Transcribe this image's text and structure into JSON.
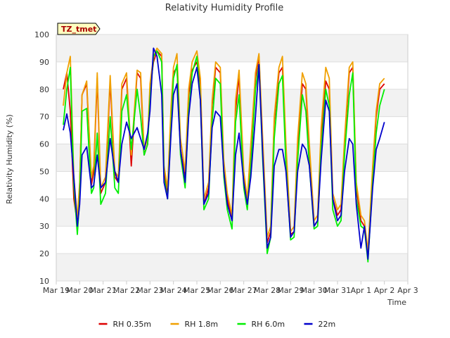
{
  "chart_data": {
    "type": "line",
    "title": "Relativity Humidity Profile",
    "xlabel": "Time",
    "ylabel": "Relativity Humidity (%)",
    "ylim": [
      10,
      100
    ],
    "xlim": [
      0,
      15
    ],
    "yticks": [
      10,
      20,
      30,
      40,
      50,
      60,
      70,
      80,
      90,
      100
    ],
    "xticks": [
      0,
      1,
      2,
      3,
      4,
      5,
      6,
      7,
      8,
      9,
      10,
      11,
      12,
      13,
      14,
      15
    ],
    "xtick_labels": [
      "Mar 19",
      "Mar 20",
      "Mar 21",
      "Mar 22",
      "Mar 23",
      "Mar 24",
      "Mar 25",
      "Mar 26",
      "Mar 27",
      "Mar 28",
      "Mar 29",
      "Mar 30",
      "Mar 31",
      "Apr 1",
      "Apr 2",
      "Apr 3"
    ],
    "x_unit": "days since Mar 19",
    "annotation": "TZ_tmet",
    "legend_position": "bottom",
    "series": [
      {
        "name": "RH 0.35m",
        "color": "#dd0000",
        "x": [
          0.3,
          0.45,
          0.6,
          0.75,
          0.9,
          1.0,
          1.1,
          1.3,
          1.5,
          1.6,
          1.75,
          1.9,
          2.1,
          2.3,
          2.5,
          2.65,
          2.8,
          3.0,
          3.2,
          3.45,
          3.6,
          3.75,
          3.9,
          4.0,
          4.15,
          4.3,
          4.5,
          4.6,
          4.75,
          4.9,
          5.0,
          5.15,
          5.3,
          5.5,
          5.65,
          5.8,
          6.0,
          6.15,
          6.3,
          6.5,
          6.65,
          6.8,
          7.0,
          7.15,
          7.3,
          7.5,
          7.65,
          7.8,
          8.0,
          8.15,
          8.3,
          8.5,
          8.65,
          8.8,
          9.0,
          9.15,
          9.3,
          9.5,
          9.65,
          9.8,
          10.0,
          10.15,
          10.3,
          10.5,
          10.65,
          10.8,
          11.0,
          11.15,
          11.3,
          11.5,
          11.65,
          11.8,
          12.0,
          12.15,
          12.3,
          12.5,
          12.65,
          12.8,
          13.0,
          13.15,
          13.3,
          13.5,
          13.65,
          13.8,
          14.0
        ],
        "values": [
          80,
          86,
          72,
          40,
          31,
          45,
          78,
          82,
          45,
          50,
          84,
          42,
          46,
          83,
          48,
          46,
          80,
          84,
          52,
          86,
          84,
          56,
          60,
          80,
          90,
          94,
          92,
          50,
          42,
          72,
          86,
          88,
          58,
          48,
          78,
          87,
          90,
          82,
          38,
          44,
          74,
          88,
          86,
          52,
          40,
          32,
          72,
          85,
          48,
          38,
          56,
          84,
          92,
          60,
          24,
          28,
          68,
          86,
          88,
          58,
          27,
          28,
          58,
          82,
          80,
          56,
          30,
          32,
          62,
          83,
          80,
          40,
          34,
          36,
          60,
          86,
          88,
          44,
          32,
          30,
          20,
          50,
          70,
          80,
          82
        ]
      },
      {
        "name": "RH 1.8m",
        "color": "#f0a000",
        "x": [
          0.3,
          0.45,
          0.6,
          0.75,
          0.9,
          1.0,
          1.1,
          1.3,
          1.5,
          1.6,
          1.75,
          1.9,
          2.1,
          2.3,
          2.5,
          2.65,
          2.8,
          3.0,
          3.2,
          3.45,
          3.6,
          3.75,
          3.9,
          4.0,
          4.15,
          4.3,
          4.5,
          4.6,
          4.75,
          4.9,
          5.0,
          5.15,
          5.3,
          5.5,
          5.65,
          5.8,
          6.0,
          6.15,
          6.3,
          6.5,
          6.65,
          6.8,
          7.0,
          7.15,
          7.3,
          7.5,
          7.65,
          7.8,
          8.0,
          8.15,
          8.3,
          8.5,
          8.65,
          8.8,
          9.0,
          9.15,
          9.3,
          9.5,
          9.65,
          9.8,
          10.0,
          10.15,
          10.3,
          10.5,
          10.65,
          10.8,
          11.0,
          11.15,
          11.3,
          11.5,
          11.65,
          11.8,
          12.0,
          12.15,
          12.3,
          12.5,
          12.65,
          12.8,
          13.0,
          13.15,
          13.3,
          13.5,
          13.65,
          13.8,
          14.0
        ],
        "values": [
          74,
          86,
          92,
          48,
          33,
          46,
          78,
          83,
          48,
          52,
          86,
          44,
          48,
          85,
          50,
          48,
          82,
          86,
          56,
          87,
          86,
          58,
          62,
          82,
          92,
          95,
          93,
          52,
          44,
          74,
          88,
          93,
          62,
          50,
          80,
          90,
          94,
          84,
          40,
          46,
          76,
          90,
          88,
          54,
          42,
          34,
          76,
          87,
          50,
          40,
          60,
          86,
          93,
          64,
          26,
          30,
          70,
          88,
          92,
          60,
          28,
          30,
          62,
          86,
          82,
          60,
          32,
          34,
          66,
          88,
          84,
          42,
          36,
          38,
          62,
          88,
          90,
          46,
          34,
          32,
          21,
          52,
          72,
          82,
          84
        ]
      },
      {
        "name": "RH 6.0m",
        "color": "#00ee00",
        "x": [
          0.3,
          0.45,
          0.6,
          0.75,
          0.9,
          1.0,
          1.1,
          1.3,
          1.5,
          1.6,
          1.75,
          1.9,
          2.1,
          2.3,
          2.5,
          2.65,
          2.8,
          3.0,
          3.2,
          3.45,
          3.6,
          3.75,
          3.9,
          4.0,
          4.15,
          4.3,
          4.5,
          4.6,
          4.75,
          4.9,
          5.0,
          5.15,
          5.3,
          5.5,
          5.65,
          5.8,
          6.0,
          6.15,
          6.3,
          6.5,
          6.65,
          6.8,
          7.0,
          7.15,
          7.3,
          7.5,
          7.65,
          7.8,
          8.0,
          8.15,
          8.3,
          8.5,
          8.65,
          8.8,
          9.0,
          9.15,
          9.3,
          9.5,
          9.65,
          9.8,
          10.0,
          10.15,
          10.3,
          10.5,
          10.65,
          10.8,
          11.0,
          11.15,
          11.3,
          11.5,
          11.65,
          11.8,
          12.0,
          12.15,
          12.3,
          12.5,
          12.65,
          12.8,
          13.0,
          13.15,
          13.3,
          13.5,
          13.65,
          13.8,
          14.0
        ],
        "values": [
          67,
          80,
          88,
          45,
          27,
          40,
          72,
          73,
          42,
          44,
          64,
          38,
          42,
          70,
          44,
          42,
          72,
          78,
          58,
          80,
          70,
          56,
          60,
          76,
          92,
          94,
          90,
          48,
          40,
          66,
          84,
          89,
          56,
          44,
          72,
          86,
          92,
          76,
          36,
          40,
          68,
          84,
          82,
          48,
          36,
          29,
          68,
          78,
          44,
          36,
          52,
          80,
          89,
          56,
          20,
          26,
          62,
          82,
          85,
          52,
          25,
          26,
          54,
          78,
          72,
          52,
          29,
          30,
          58,
          80,
          74,
          36,
          30,
          32,
          56,
          78,
          86,
          40,
          30,
          29,
          17,
          46,
          64,
          74,
          80
        ]
      },
      {
        "name": "22m",
        "color": "#0000cc",
        "x": [
          0.3,
          0.45,
          0.6,
          0.75,
          0.9,
          1.0,
          1.1,
          1.3,
          1.5,
          1.6,
          1.75,
          1.9,
          2.1,
          2.3,
          2.5,
          2.65,
          2.8,
          3.0,
          3.2,
          3.45,
          3.6,
          3.75,
          3.9,
          4.0,
          4.15,
          4.3,
          4.5,
          4.6,
          4.75,
          4.9,
          5.0,
          5.15,
          5.3,
          5.5,
          5.65,
          5.8,
          6.0,
          6.15,
          6.3,
          6.5,
          6.65,
          6.8,
          7.0,
          7.15,
          7.3,
          7.5,
          7.65,
          7.8,
          8.0,
          8.15,
          8.3,
          8.5,
          8.65,
          8.8,
          9.0,
          9.15,
          9.3,
          9.5,
          9.65,
          9.8,
          10.0,
          10.15,
          10.3,
          10.5,
          10.65,
          10.8,
          11.0,
          11.15,
          11.3,
          11.5,
          11.65,
          11.8,
          12.0,
          12.15,
          12.3,
          12.5,
          12.65,
          12.8,
          13.0,
          13.15,
          13.3,
          13.5,
          13.65,
          13.8,
          14.0
        ],
        "values": [
          65,
          71,
          64,
          48,
          30,
          38,
          56,
          59,
          44,
          45,
          56,
          44,
          46,
          62,
          50,
          46,
          60,
          68,
          62,
          66,
          62,
          58,
          64,
          72,
          95,
          92,
          78,
          46,
          40,
          64,
          78,
          82,
          58,
          46,
          70,
          82,
          88,
          76,
          38,
          42,
          66,
          72,
          70,
          50,
          38,
          32,
          56,
          64,
          46,
          38,
          48,
          70,
          89,
          58,
          22,
          26,
          52,
          58,
          58,
          50,
          26,
          28,
          50,
          60,
          58,
          52,
          30,
          32,
          54,
          76,
          72,
          40,
          32,
          34,
          50,
          62,
          60,
          38,
          22,
          30,
          18,
          44,
          58,
          62,
          68
        ]
      }
    ]
  }
}
